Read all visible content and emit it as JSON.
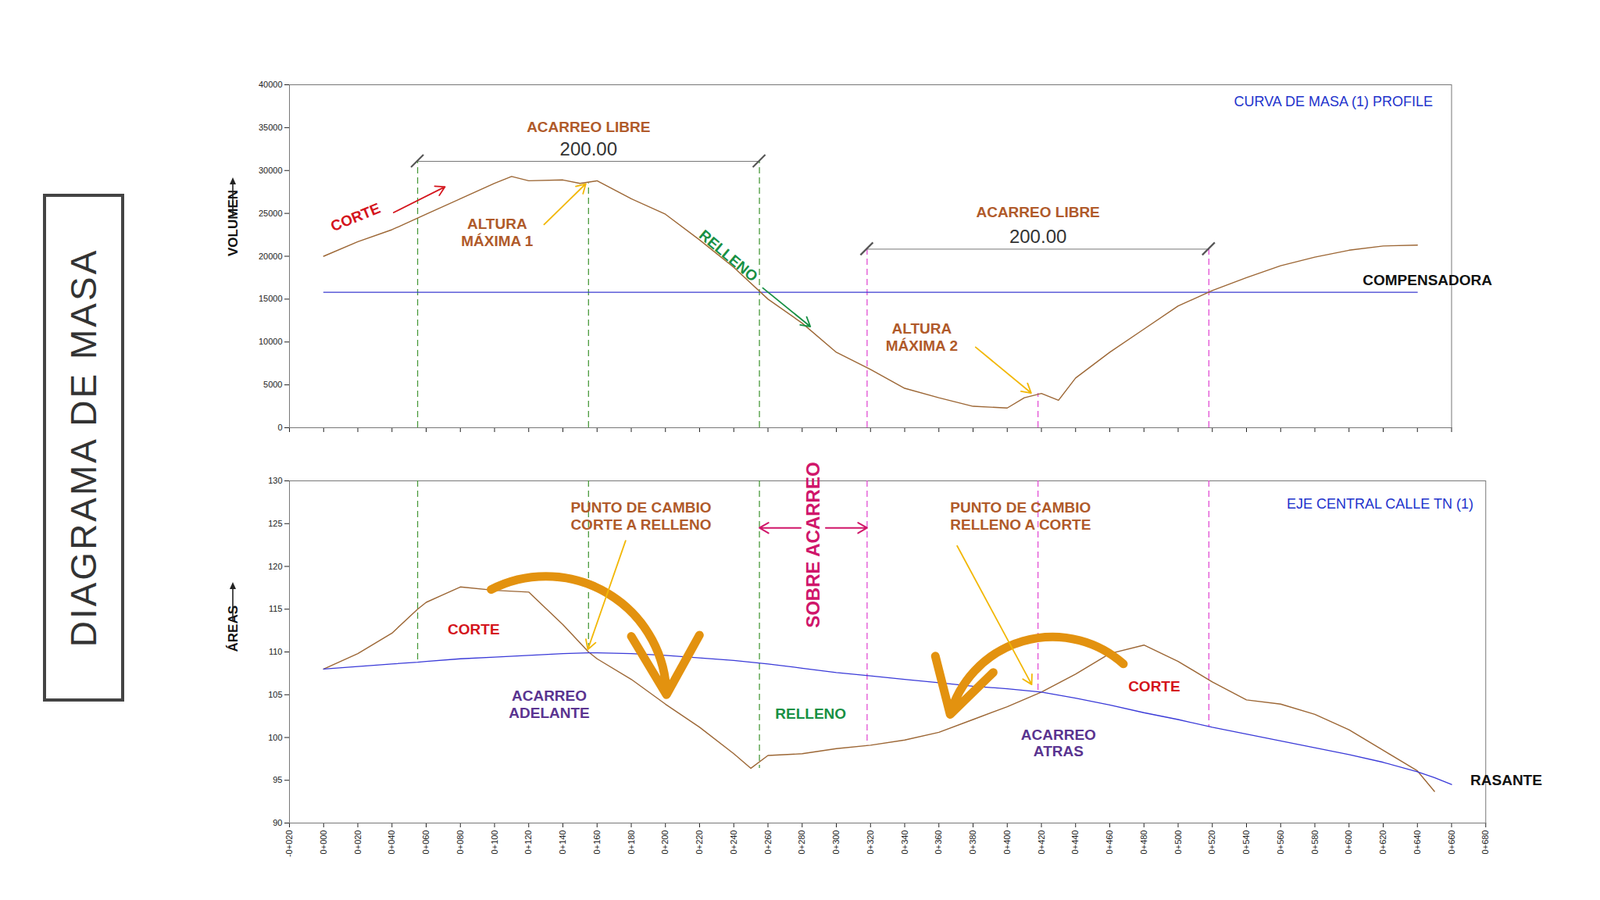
{
  "title": "DIAGRAMA DE MASA",
  "chart_data": [
    {
      "type": "line",
      "title": "CURVA DE MASA (1) PROFILE",
      "y_label": "VOLUMEN",
      "x": [
        0,
        20,
        40,
        60,
        80,
        100,
        110,
        120,
        140,
        150,
        160,
        180,
        200,
        220,
        240,
        260,
        280,
        300,
        320,
        340,
        360,
        380,
        400,
        410,
        420,
        430,
        440,
        460,
        480,
        500,
        520,
        540,
        560,
        580,
        600,
        620,
        640
      ],
      "values": [
        20000,
        21700,
        23100,
        24900,
        26700,
        28500,
        29300,
        28800,
        28900,
        28500,
        28800,
        26700,
        24900,
        21900,
        18700,
        15000,
        12200,
        8800,
        6800,
        4600,
        3500,
        2500,
        2300,
        3500,
        4000,
        3200,
        5800,
        8800,
        11500,
        14200,
        16000,
        17500,
        18900,
        19900,
        20700,
        21200,
        21300
      ],
      "color": "#9c6634",
      "xlim": [
        -20,
        660
      ],
      "xticks": [
        -20,
        0,
        20,
        40,
        60,
        80,
        100,
        120,
        140,
        160,
        180,
        200,
        220,
        240,
        260,
        280,
        300,
        320,
        340,
        360,
        380,
        400,
        420,
        440,
        460,
        480,
        500,
        520,
        540,
        560,
        580,
        600,
        620,
        640,
        660
      ],
      "ylim": [
        0,
        40000
      ],
      "yticks": [
        0,
        5000,
        10000,
        15000,
        20000,
        25000,
        30000,
        35000,
        40000
      ],
      "tick_labels": "y",
      "reference_line": {
        "label": "COMPENSADORA",
        "value": 15800,
        "x": [
          0,
          640
        ],
        "color": "#3a3ad0"
      },
      "free_haul": [
        {
          "label": "ACARREO LIBRE",
          "length": {
            "value": 200,
            "label": "200.00"
          },
          "from": 55,
          "to": 255,
          "max_station": 155,
          "color": "#4a9a3c"
        },
        {
          "label": "ACARREO LIBRE",
          "length": {
            "value": 200,
            "label": "200.00"
          },
          "from": 318,
          "to": 518,
          "max_station": 418,
          "color": "#e24fd4"
        }
      ],
      "annotations": [
        {
          "text": "CORTE",
          "color": "#d4141c"
        },
        {
          "text": "ALTURA MÁXIMA 1",
          "color": "#b05a2a"
        },
        {
          "text": "RELLENO",
          "color": "#189044"
        },
        {
          "text": "ALTURA MÁXIMA 2",
          "color": "#b05a2a"
        }
      ]
    },
    {
      "type": "area",
      "title": "EJE CENTRAL CALLE TN (1)",
      "y_label": "ÁREAS",
      "x": [
        0,
        20,
        40,
        55,
        60,
        80,
        100,
        120,
        140,
        155,
        160,
        180,
        200,
        220,
        240,
        250,
        260,
        280,
        300,
        320,
        340,
        360,
        380,
        400,
        420,
        440,
        460,
        480,
        500,
        520,
        540,
        560,
        580,
        600,
        620,
        640,
        650,
        660
      ],
      "series": [
        {
          "color": "#9c6634",
          "values": [
            108.0,
            109.8,
            112.2,
            115.0,
            115.8,
            117.6,
            117.2,
            117.0,
            113.2,
            110.0,
            109.2,
            106.8,
            103.9,
            101.2,
            98.1,
            96.4,
            97.9,
            98.1,
            98.7,
            99.1,
            99.7,
            100.6,
            102.1,
            103.6,
            105.3,
            107.4,
            109.8,
            110.8,
            108.9,
            106.5,
            104.4,
            103.9,
            102.7,
            100.9,
            98.5,
            96.1,
            93.7,
            null
          ]
        },
        {
          "name": "RASANTE",
          "color": "#3a3ad8",
          "values": [
            108.0,
            108.3,
            108.6,
            108.8,
            108.9,
            109.2,
            109.4,
            109.6,
            109.8,
            109.9,
            109.9,
            109.8,
            109.6,
            109.3,
            109.0,
            108.8,
            108.6,
            108.1,
            107.6,
            107.2,
            106.8,
            106.4,
            106.0,
            105.7,
            105.3,
            104.6,
            103.8,
            102.9,
            102.1,
            101.2,
            100.4,
            99.6,
            98.8,
            98.0,
            97.1,
            96.0,
            95.3,
            94.5
          ]
        }
      ],
      "xlim": [
        -20,
        680
      ],
      "xticks": [
        {
          "value": -20,
          "label": "-0+020"
        },
        {
          "value": 0,
          "label": "0+000"
        },
        {
          "value": 20,
          "label": "0+020"
        },
        {
          "value": 40,
          "label": "0+040"
        },
        {
          "value": 60,
          "label": "0+060"
        },
        {
          "value": 80,
          "label": "0+080"
        },
        {
          "value": 100,
          "label": "0+100"
        },
        {
          "value": 120,
          "label": "0+120"
        },
        {
          "value": 140,
          "label": "0+140"
        },
        {
          "value": 160,
          "label": "0+160"
        },
        {
          "value": 180,
          "label": "0+180"
        },
        {
          "value": 200,
          "label": "0+200"
        },
        {
          "value": 220,
          "label": "0+220"
        },
        {
          "value": 240,
          "label": "0+240"
        },
        {
          "value": 260,
          "label": "0+260"
        },
        {
          "value": 280,
          "label": "0+280"
        },
        {
          "value": 300,
          "label": "0+300"
        },
        {
          "value": 320,
          "label": "0+320"
        },
        {
          "value": 340,
          "label": "0+340"
        },
        {
          "value": 360,
          "label": "0+360"
        },
        {
          "value": 380,
          "label": "0+380"
        },
        {
          "value": 400,
          "label": "0+400"
        },
        {
          "value": 420,
          "label": "0+420"
        },
        {
          "value": 440,
          "label": "0+440"
        },
        {
          "value": 460,
          "label": "0+460"
        },
        {
          "value": 480,
          "label": "0+480"
        },
        {
          "value": 500,
          "label": "0+500"
        },
        {
          "value": 520,
          "label": "0+520"
        },
        {
          "value": 540,
          "label": "0+540"
        },
        {
          "value": 560,
          "label": "0+560"
        },
        {
          "value": 580,
          "label": "0+580"
        },
        {
          "value": 600,
          "label": "0+600"
        },
        {
          "value": 620,
          "label": "0+620"
        },
        {
          "value": 640,
          "label": "0+640"
        },
        {
          "value": 660,
          "label": "0+660"
        },
        {
          "value": 680,
          "label": "0+680"
        }
      ],
      "ylim": [
        90,
        130
      ],
      "yticks": [
        90,
        95,
        100,
        105,
        110,
        115,
        120,
        125,
        130
      ],
      "zones": [
        {
          "from": 55,
          "to": 155,
          "color": "#d4141c"
        },
        {
          "from": 155,
          "to": 260,
          "color": "#1f9a3a"
        },
        {
          "from": 260,
          "to": 320,
          "color": "#d4141c"
        },
        {
          "from": 320,
          "to": 420,
          "color": "#1f9a3a"
        },
        {
          "from": 420,
          "to": 520,
          "color": "#d4141c"
        }
      ],
      "overhaul": {
        "label": "SOBRE ACARREO",
        "from": 255,
        "to": 318,
        "color": "#d0166a"
      },
      "annotations": [
        {
          "text": "PUNTO DE CAMBIO CORTE A RELLENO",
          "color": "#b05a2a"
        },
        {
          "text": "PUNTO DE CAMBIO RELLENO A CORTE",
          "color": "#b05a2a"
        },
        {
          "text": "CORTE",
          "color": "#d4141c"
        },
        {
          "text": "ACARREO ADELANTE",
          "color": "#5a3490"
        },
        {
          "text": "RELLENO",
          "color": "#189044"
        },
        {
          "text": "ACARREO ATRAS",
          "color": "#5a3490"
        },
        {
          "text": "CORTE",
          "color": "#d4141c"
        }
      ]
    }
  ]
}
